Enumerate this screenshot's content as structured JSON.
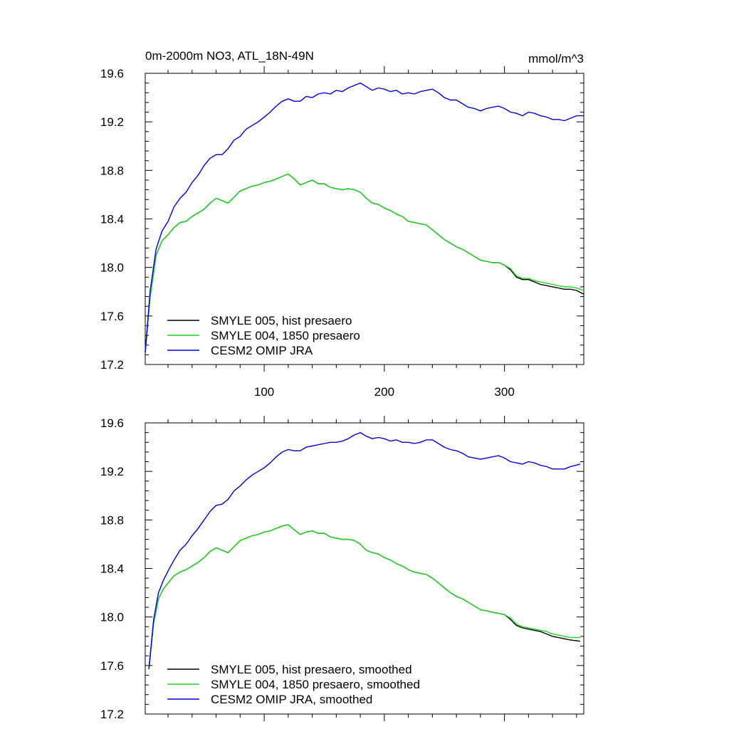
{
  "title_left": "0m-2000m NO3, ATL_18N-49N",
  "title_right": "mmol/m^3",
  "chart_data": [
    {
      "type": "line",
      "title": "0m-2000m NO3, ATL_18N-49N",
      "units": "mmol/m^3",
      "xlim": [
        1,
        366
      ],
      "ylim": [
        17.2,
        19.6
      ],
      "xticks": [
        100,
        200,
        300
      ],
      "xtick_labels": [
        "100",
        "200",
        "300"
      ],
      "yticks": [
        17.2,
        17.6,
        18.0,
        18.4,
        18.8,
        19.2,
        19.6
      ],
      "ytick_labels": [
        "17.2",
        "17.6",
        "18.0",
        "18.4",
        "18.8",
        "19.2",
        "19.6"
      ],
      "grid": false,
      "legend_position": "bottom-left",
      "series": [
        {
          "name": "SMYLE 005, hist presaero",
          "color": "#000000",
          "x": [
            1,
            5,
            10,
            15,
            20,
            25,
            30,
            35,
            40,
            45,
            50,
            55,
            60,
            65,
            70,
            75,
            80,
            85,
            90,
            95,
            100,
            105,
            110,
            115,
            120,
            125,
            130,
            135,
            140,
            145,
            150,
            155,
            160,
            165,
            170,
            175,
            180,
            185,
            190,
            195,
            200,
            205,
            210,
            215,
            220,
            225,
            230,
            235,
            240,
            245,
            250,
            255,
            260,
            265,
            270,
            275,
            280,
            285,
            290,
            295,
            300,
            305,
            310,
            315,
            320,
            325,
            330,
            335,
            340,
            345,
            350,
            355,
            360,
            366
          ],
          "y": [
            17.3,
            17.75,
            18.1,
            18.22,
            18.27,
            18.33,
            18.37,
            18.38,
            18.42,
            18.45,
            18.48,
            18.53,
            18.57,
            18.55,
            18.53,
            18.58,
            18.63,
            18.65,
            18.67,
            18.68,
            18.7,
            18.71,
            18.73,
            18.75,
            18.77,
            18.73,
            18.68,
            18.7,
            18.72,
            18.69,
            18.69,
            18.66,
            18.65,
            18.64,
            18.65,
            18.64,
            18.62,
            18.57,
            18.53,
            18.52,
            18.49,
            18.47,
            18.44,
            18.42,
            18.38,
            18.37,
            18.36,
            18.35,
            18.31,
            18.27,
            18.23,
            18.2,
            18.17,
            18.15,
            18.12,
            18.09,
            18.06,
            18.05,
            18.04,
            18.04,
            18.02,
            17.98,
            17.92,
            17.9,
            17.9,
            17.88,
            17.86,
            17.85,
            17.84,
            17.83,
            17.82,
            17.82,
            17.81,
            17.78
          ]
        },
        {
          "name": "SMYLE 004, 1850 presaero",
          "color": "#1fd81f",
          "x": [
            1,
            5,
            10,
            15,
            20,
            25,
            30,
            35,
            40,
            45,
            50,
            55,
            60,
            65,
            70,
            75,
            80,
            85,
            90,
            95,
            100,
            105,
            110,
            115,
            120,
            125,
            130,
            135,
            140,
            145,
            150,
            155,
            160,
            165,
            170,
            175,
            180,
            185,
            190,
            195,
            200,
            205,
            210,
            215,
            220,
            225,
            230,
            235,
            240,
            245,
            250,
            255,
            260,
            265,
            270,
            275,
            280,
            285,
            290,
            295,
            300,
            305,
            310,
            315,
            320,
            325,
            330,
            335,
            340,
            345,
            350,
            355,
            360,
            366
          ],
          "y": [
            17.3,
            17.75,
            18.1,
            18.22,
            18.27,
            18.33,
            18.37,
            18.38,
            18.42,
            18.45,
            18.48,
            18.53,
            18.57,
            18.55,
            18.53,
            18.58,
            18.63,
            18.65,
            18.67,
            18.68,
            18.7,
            18.71,
            18.73,
            18.75,
            18.77,
            18.73,
            18.68,
            18.7,
            18.72,
            18.69,
            18.69,
            18.66,
            18.65,
            18.64,
            18.65,
            18.64,
            18.62,
            18.57,
            18.53,
            18.52,
            18.49,
            18.47,
            18.44,
            18.42,
            18.38,
            18.37,
            18.36,
            18.35,
            18.31,
            18.27,
            18.23,
            18.2,
            18.17,
            18.15,
            18.12,
            18.09,
            18.06,
            18.05,
            18.04,
            18.04,
            18.02,
            17.99,
            17.93,
            17.91,
            17.91,
            17.89,
            17.88,
            17.87,
            17.86,
            17.85,
            17.84,
            17.84,
            17.83,
            17.81
          ]
        },
        {
          "name": "CESM2 OMIP JRA",
          "color": "#0000e0",
          "x": [
            1,
            5,
            10,
            15,
            20,
            25,
            30,
            35,
            40,
            45,
            50,
            55,
            60,
            65,
            70,
            75,
            80,
            85,
            90,
            95,
            100,
            105,
            110,
            115,
            120,
            125,
            130,
            135,
            140,
            145,
            150,
            155,
            160,
            165,
            170,
            175,
            180,
            185,
            190,
            195,
            200,
            205,
            210,
            215,
            220,
            225,
            230,
            235,
            240,
            245,
            250,
            255,
            260,
            265,
            270,
            275,
            280,
            285,
            290,
            295,
            300,
            305,
            310,
            315,
            320,
            325,
            330,
            335,
            340,
            345,
            350,
            355,
            360,
            366
          ],
          "y": [
            17.3,
            17.8,
            18.15,
            18.3,
            18.38,
            18.5,
            18.57,
            18.62,
            18.7,
            18.76,
            18.84,
            18.9,
            18.93,
            18.93,
            18.98,
            19.05,
            19.08,
            19.14,
            19.17,
            19.2,
            19.24,
            19.28,
            19.33,
            19.37,
            19.39,
            19.37,
            19.37,
            19.41,
            19.4,
            19.43,
            19.44,
            19.43,
            19.46,
            19.45,
            19.48,
            19.5,
            19.52,
            19.49,
            19.46,
            19.48,
            19.47,
            19.45,
            19.46,
            19.43,
            19.44,
            19.43,
            19.45,
            19.46,
            19.47,
            19.44,
            19.4,
            19.38,
            19.38,
            19.35,
            19.32,
            19.31,
            19.29,
            19.31,
            19.32,
            19.33,
            19.31,
            19.28,
            19.27,
            19.25,
            19.28,
            19.27,
            19.25,
            19.24,
            19.22,
            19.22,
            19.21,
            19.23,
            19.25,
            19.25
          ]
        }
      ]
    },
    {
      "type": "line",
      "xlim": [
        1,
        366
      ],
      "ylim": [
        17.2,
        19.6
      ],
      "xticks": [
        100,
        200,
        300
      ],
      "yticks": [
        17.2,
        17.6,
        18.0,
        18.4,
        18.8,
        19.2,
        19.6
      ],
      "ytick_labels": [
        "17.2",
        "17.6",
        "18.0",
        "18.4",
        "18.8",
        "19.2",
        "19.6"
      ],
      "grid": false,
      "legend_position": "bottom-left",
      "series": [
        {
          "name": "SMYLE 005, hist presaero, smoothed",
          "color": "#000000",
          "x": [
            4,
            8,
            12,
            16,
            20,
            25,
            30,
            35,
            40,
            45,
            50,
            55,
            60,
            65,
            70,
            75,
            80,
            85,
            90,
            95,
            100,
            105,
            110,
            115,
            120,
            125,
            130,
            135,
            140,
            145,
            150,
            155,
            160,
            165,
            170,
            175,
            180,
            185,
            190,
            195,
            200,
            205,
            210,
            215,
            220,
            225,
            230,
            235,
            240,
            245,
            250,
            255,
            260,
            265,
            270,
            275,
            280,
            285,
            290,
            295,
            300,
            305,
            310,
            315,
            320,
            325,
            330,
            335,
            340,
            345,
            350,
            355,
            363
          ],
          "y": [
            17.57,
            17.95,
            18.15,
            18.23,
            18.28,
            18.34,
            18.37,
            18.39,
            18.42,
            18.45,
            18.49,
            18.54,
            18.57,
            18.55,
            18.53,
            18.58,
            18.63,
            18.65,
            18.67,
            18.68,
            18.7,
            18.71,
            18.73,
            18.75,
            18.76,
            18.72,
            18.68,
            18.7,
            18.71,
            18.69,
            18.69,
            18.66,
            18.65,
            18.64,
            18.64,
            18.63,
            18.6,
            18.55,
            18.53,
            18.52,
            18.49,
            18.47,
            18.44,
            18.42,
            18.39,
            18.37,
            18.36,
            18.35,
            18.32,
            18.28,
            18.24,
            18.2,
            18.17,
            18.15,
            18.12,
            18.09,
            18.06,
            18.05,
            18.04,
            18.03,
            18.02,
            17.98,
            17.93,
            17.91,
            17.9,
            17.89,
            17.88,
            17.86,
            17.84,
            17.83,
            17.82,
            17.81,
            17.8
          ]
        },
        {
          "name": "SMYLE 004, 1850 presaero, smoothed",
          "color": "#1fd81f",
          "x": [
            4,
            8,
            12,
            16,
            20,
            25,
            30,
            35,
            40,
            45,
            50,
            55,
            60,
            65,
            70,
            75,
            80,
            85,
            90,
            95,
            100,
            105,
            110,
            115,
            120,
            125,
            130,
            135,
            140,
            145,
            150,
            155,
            160,
            165,
            170,
            175,
            180,
            185,
            190,
            195,
            200,
            205,
            210,
            215,
            220,
            225,
            230,
            235,
            240,
            245,
            250,
            255,
            260,
            265,
            270,
            275,
            280,
            285,
            290,
            295,
            300,
            305,
            310,
            315,
            320,
            325,
            330,
            335,
            340,
            345,
            350,
            355,
            363
          ],
          "y": [
            17.57,
            17.95,
            18.15,
            18.23,
            18.28,
            18.34,
            18.37,
            18.39,
            18.42,
            18.45,
            18.49,
            18.54,
            18.57,
            18.55,
            18.53,
            18.58,
            18.63,
            18.65,
            18.67,
            18.68,
            18.7,
            18.71,
            18.73,
            18.75,
            18.76,
            18.72,
            18.68,
            18.7,
            18.71,
            18.69,
            18.69,
            18.66,
            18.65,
            18.64,
            18.64,
            18.63,
            18.6,
            18.55,
            18.53,
            18.52,
            18.49,
            18.47,
            18.44,
            18.42,
            18.39,
            18.37,
            18.36,
            18.35,
            18.32,
            18.28,
            18.24,
            18.2,
            18.17,
            18.15,
            18.12,
            18.09,
            18.06,
            18.05,
            18.04,
            18.03,
            18.02,
            17.99,
            17.94,
            17.92,
            17.91,
            17.9,
            17.89,
            17.88,
            17.86,
            17.85,
            17.84,
            17.83,
            17.83
          ]
        },
        {
          "name": "CESM2 OMIP JRA, smoothed",
          "color": "#0000e0",
          "x": [
            4,
            8,
            12,
            16,
            20,
            25,
            30,
            35,
            40,
            45,
            50,
            55,
            60,
            65,
            70,
            75,
            80,
            85,
            90,
            95,
            100,
            105,
            110,
            115,
            120,
            125,
            130,
            135,
            140,
            145,
            150,
            155,
            160,
            165,
            170,
            175,
            180,
            185,
            190,
            195,
            200,
            205,
            210,
            215,
            220,
            225,
            230,
            235,
            240,
            245,
            250,
            255,
            260,
            265,
            270,
            275,
            280,
            285,
            290,
            295,
            300,
            305,
            310,
            315,
            320,
            325,
            330,
            335,
            340,
            345,
            350,
            355,
            363
          ],
          "y": [
            17.57,
            17.98,
            18.2,
            18.3,
            18.38,
            18.47,
            18.55,
            18.6,
            18.67,
            18.73,
            18.8,
            18.87,
            18.92,
            18.93,
            18.97,
            19.04,
            19.08,
            19.13,
            19.17,
            19.2,
            19.23,
            19.27,
            19.32,
            19.36,
            19.38,
            19.37,
            19.37,
            19.4,
            19.41,
            19.42,
            19.43,
            19.44,
            19.44,
            19.45,
            19.47,
            19.5,
            19.52,
            19.49,
            19.47,
            19.48,
            19.47,
            19.45,
            19.46,
            19.44,
            19.44,
            19.43,
            19.44,
            19.46,
            19.46,
            19.43,
            19.4,
            19.38,
            19.37,
            19.35,
            19.32,
            19.31,
            19.3,
            19.31,
            19.32,
            19.33,
            19.31,
            19.28,
            19.27,
            19.26,
            19.28,
            19.27,
            19.25,
            19.24,
            19.22,
            19.22,
            19.22,
            19.24,
            19.26
          ]
        }
      ]
    }
  ]
}
